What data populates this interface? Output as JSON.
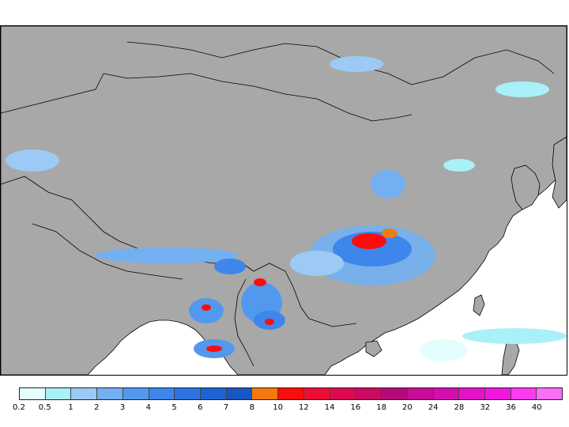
{
  "map": {
    "land_color": "#a8a8a8",
    "sea_color": "#ffffff",
    "border_color": "#000000"
  },
  "legend": {
    "colors": [
      "#e4fefe",
      "#aaf0f8",
      "#9ccaf5",
      "#72b0f2",
      "#5299ee",
      "#3e86eb",
      "#2d74e2",
      "#1c62d3",
      "#1856c2",
      "#f27a10",
      "#fc0d0d",
      "#ec0e32",
      "#dc0a4e",
      "#c80a60",
      "#b40a7a",
      "#c80c96",
      "#d40eae",
      "#e412c8",
      "#f018dc",
      "#fc3cf0",
      "#fc6ef8"
    ],
    "labels": [
      "0.2",
      "0.5",
      "1",
      "2",
      "3",
      "4",
      "5",
      "6",
      "7",
      "8",
      "10",
      "12",
      "14",
      "16",
      "18",
      "20",
      "24",
      "28",
      "32",
      "36",
      "40"
    ]
  }
}
